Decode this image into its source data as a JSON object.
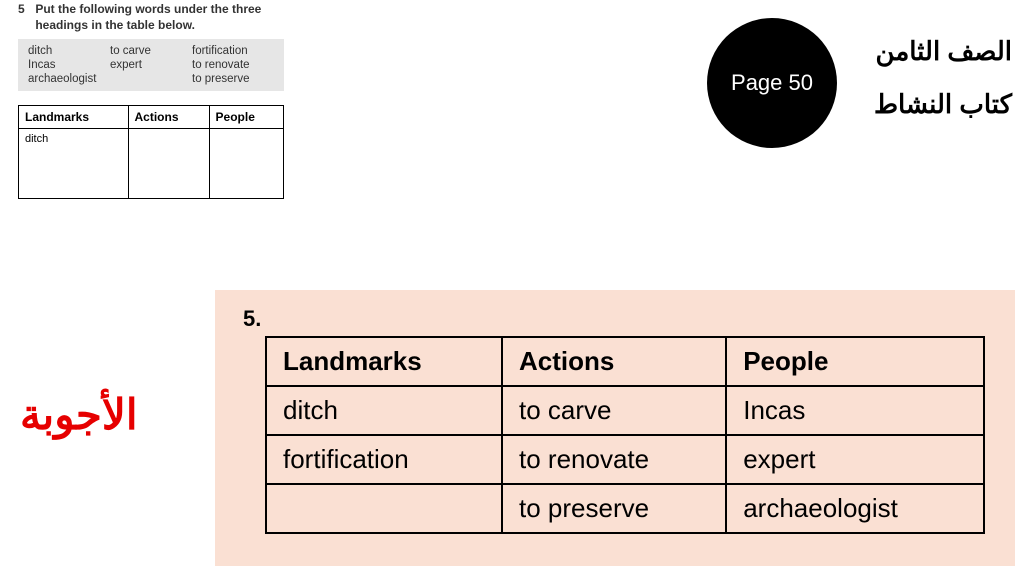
{
  "exercise": {
    "number": "5",
    "instruction": "Put the following words under the three headings in the table below.",
    "wordbank": [
      "ditch",
      "to carve",
      "fortification",
      "Incas",
      "expert",
      "to renovate",
      "archaeologist",
      "",
      "to preserve"
    ],
    "empty_table": {
      "headers": [
        "Landmarks",
        "Actions",
        "People"
      ],
      "first_cell": "ditch"
    }
  },
  "badge": {
    "circle_text": "Page 50",
    "line1": "الصف الثامن",
    "line2": "كتاب النشاط"
  },
  "answers": {
    "label_ar": "الأجوبة",
    "number": "5.",
    "table": {
      "headers": [
        "Landmarks",
        "Actions",
        "People"
      ],
      "rows": [
        [
          "ditch",
          "to carve",
          "Incas"
        ],
        [
          "fortification",
          "to renovate",
          "expert"
        ],
        [
          "",
          "to preserve",
          "archaeologist"
        ]
      ]
    }
  }
}
